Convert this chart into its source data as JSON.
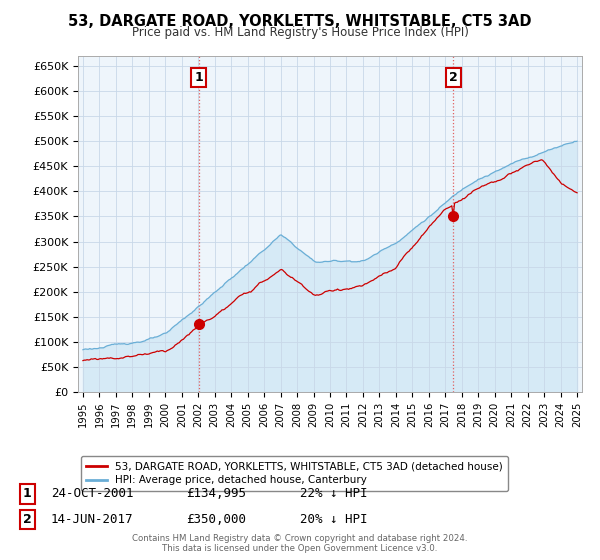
{
  "title": "53, DARGATE ROAD, YORKLETTS, WHITSTABLE, CT5 3AD",
  "subtitle": "Price paid vs. HM Land Registry's House Price Index (HPI)",
  "ylim": [
    0,
    670000
  ],
  "yticks": [
    0,
    50000,
    100000,
    150000,
    200000,
    250000,
    300000,
    350000,
    400000,
    450000,
    500000,
    550000,
    600000,
    650000
  ],
  "ytick_labels": [
    "£0",
    "£50K",
    "£100K",
    "£150K",
    "£200K",
    "£250K",
    "£300K",
    "£350K",
    "£400K",
    "£450K",
    "£500K",
    "£550K",
    "£600K",
    "£650K"
  ],
  "hpi_color": "#6aaed6",
  "hpi_fill_color": "#d0e8f5",
  "price_color": "#cc0000",
  "vline_color": "#e06060",
  "marker1_year": 2002.0,
  "marker1_price": 134995,
  "marker2_year": 2017.5,
  "marker2_price": 350000,
  "legend_line1": "53, DARGATE ROAD, YORKLETTS, WHITSTABLE, CT5 3AD (detached house)",
  "legend_line2": "HPI: Average price, detached house, Canterbury",
  "sale1_num": "1",
  "sale1_date": "24-OCT-2001",
  "sale1_price": "£134,995",
  "sale1_hpi": "22% ↓ HPI",
  "sale2_num": "2",
  "sale2_date": "14-JUN-2017",
  "sale2_price": "£350,000",
  "sale2_hpi": "20% ↓ HPI",
  "footer": "Contains HM Land Registry data © Crown copyright and database right 2024.\nThis data is licensed under the Open Government Licence v3.0.",
  "background_color": "#ffffff",
  "plot_bg_color": "#eef5fb",
  "grid_color": "#c8d8e8"
}
